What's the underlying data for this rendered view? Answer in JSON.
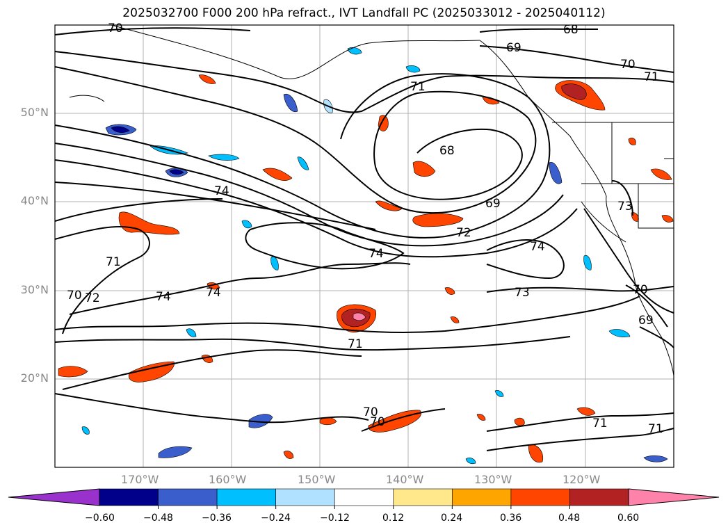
{
  "title": "2025032700 F000 200 hPa refract., IVT Landfall PC (2025033012 - 2025040112)",
  "lat_labels": [
    "50°N",
    "40°N",
    "30°N",
    "20°N"
  ],
  "lon_labels": [
    "170°W",
    "160°W",
    "150°W",
    "140°W",
    "130°W",
    "120°W"
  ],
  "colorbar": {
    "ticks": [
      "−0.60",
      "−0.48",
      "−0.36",
      "−0.24",
      "−0.12",
      "0.12",
      "0.24",
      "0.36",
      "0.48",
      "0.60"
    ],
    "colors": [
      "#9932cc",
      "#00008b",
      "#3a5fcd",
      "#00bfff",
      "#b0e2ff",
      "#ffffff",
      "#ffe88c",
      "#ffa500",
      "#ff4500",
      "#b22222",
      "#ff82ab"
    ]
  },
  "contour_labels": [
    "70",
    "68",
    "69",
    "70",
    "71",
    "71",
    "68",
    "69",
    "74",
    "72",
    "74",
    "71",
    "72",
    "70",
    "74",
    "74",
    "73",
    "73",
    "70",
    "69",
    "71",
    "70",
    "70",
    "71",
    "71",
    "74"
  ],
  "domain": {
    "lon": [
      -180,
      -110
    ],
    "lat": [
      10,
      60
    ]
  },
  "features": [
    "coastline",
    "state-borders"
  ]
}
